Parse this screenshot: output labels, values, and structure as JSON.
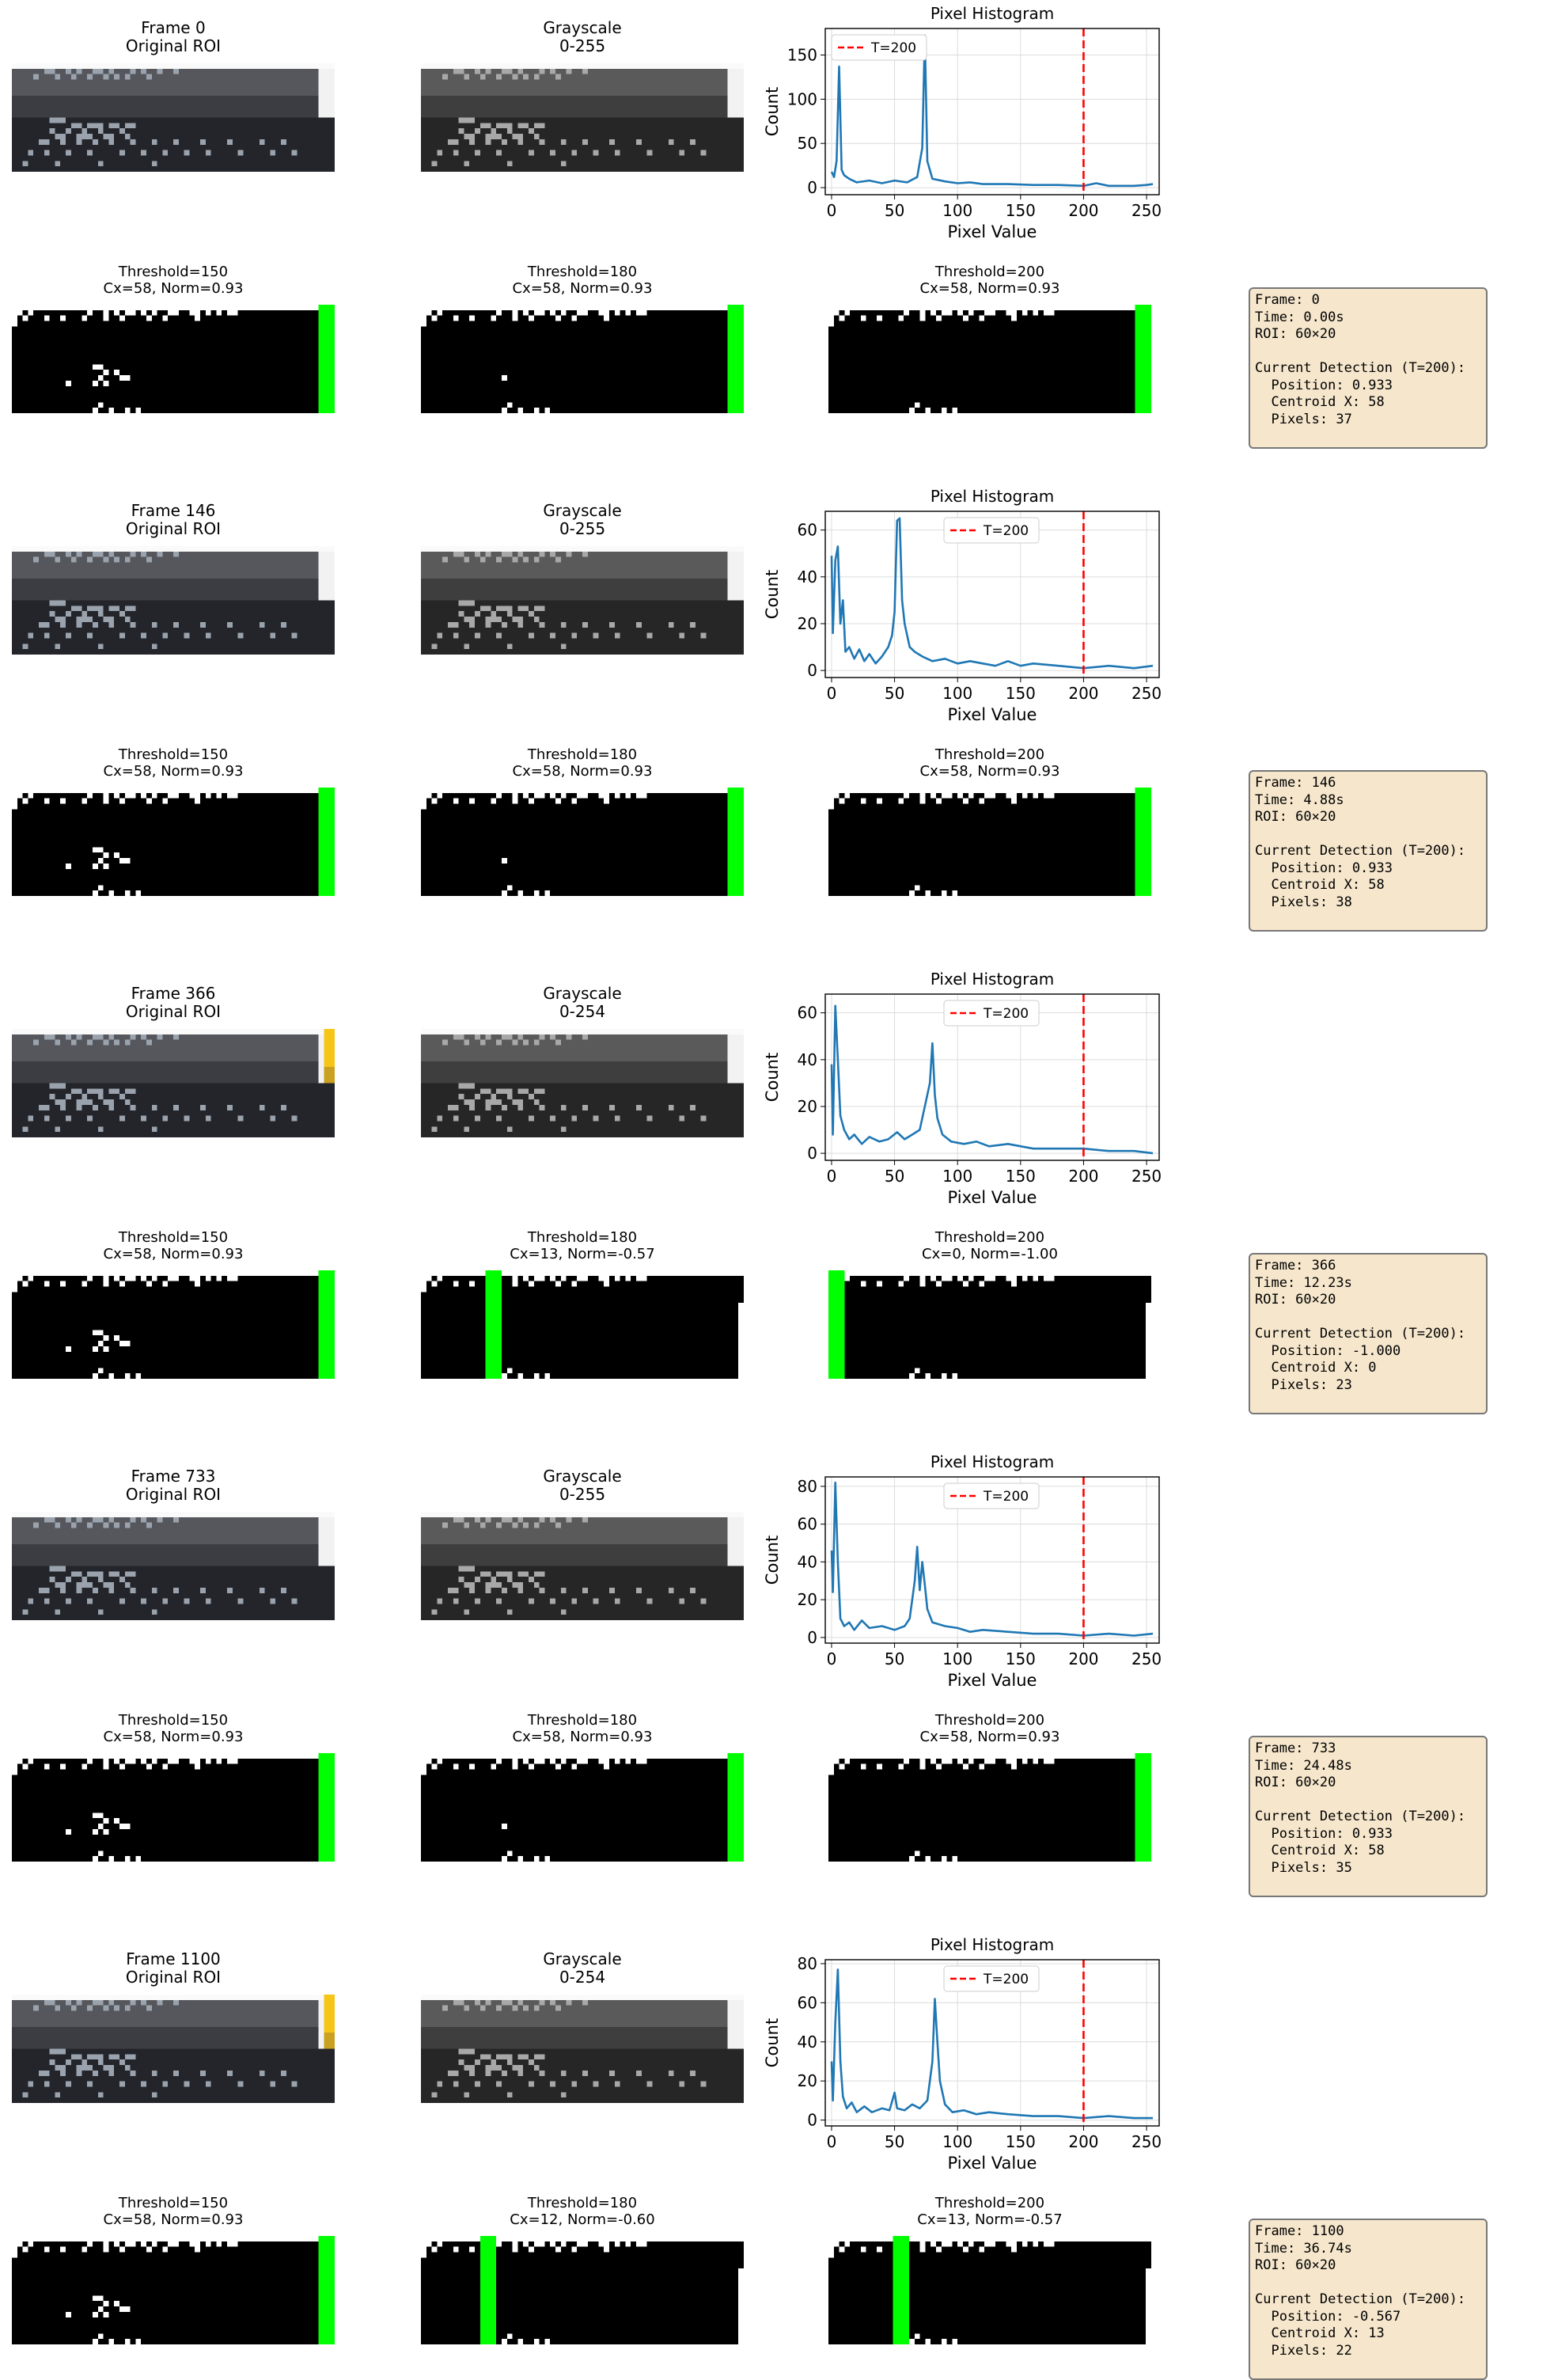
{
  "colors": {
    "line": "#1f77b4",
    "threshold": "#ff0000",
    "detection": "#00ff00",
    "info_bg": "#f5e6cc"
  },
  "chart_data": {
    "type": "line",
    "frames": [
      {
        "roi_title": "Frame 0\nOriginal ROI",
        "gray_title": "Grayscale\n0-255",
        "hist": {
          "title": "Pixel Histogram",
          "xlabel": "Pixel Value",
          "ylabel": "Count",
          "legend": "T=200",
          "legend_pos": "upper left",
          "threshold": 200,
          "xlim": [
            -5,
            260
          ],
          "ylim": [
            -8,
            180
          ],
          "xticks": [
            0,
            50,
            100,
            150,
            200,
            250
          ],
          "yticks": [
            0,
            50,
            100,
            150
          ],
          "points": [
            [
              0,
              18
            ],
            [
              2,
              12
            ],
            [
              4,
              30
            ],
            [
              6,
              137
            ],
            [
              8,
              20
            ],
            [
              10,
              14
            ],
            [
              14,
              10
            ],
            [
              20,
              6
            ],
            [
              30,
              8
            ],
            [
              40,
              5
            ],
            [
              50,
              8
            ],
            [
              60,
              6
            ],
            [
              68,
              12
            ],
            [
              72,
              45
            ],
            [
              74,
              172
            ],
            [
              76,
              30
            ],
            [
              80,
              10
            ],
            [
              90,
              7
            ],
            [
              100,
              5
            ],
            [
              110,
              6
            ],
            [
              120,
              4
            ],
            [
              140,
              4
            ],
            [
              160,
              3
            ],
            [
              180,
              3
            ],
            [
              200,
              2
            ],
            [
              210,
              5
            ],
            [
              220,
              2
            ],
            [
              240,
              2
            ],
            [
              250,
              3
            ],
            [
              255,
              4
            ]
          ]
        },
        "thresholds": [
          {
            "title": "Threshold=150\nCx=58, Norm=0.93",
            "cx": 58,
            "dots": true,
            "stripe_fill": 1
          },
          {
            "title": "Threshold=180\nCx=58, Norm=0.93",
            "cx": 58,
            "dots": "few",
            "stripe_fill": 1
          },
          {
            "title": "Threshold=200\nCx=58, Norm=0.93",
            "cx": 58,
            "dots": false,
            "stripe_fill": 1
          }
        ],
        "info": "Frame: 0\nTime: 0.00s\nROI: 60×20\n\nCurrent Detection (T=200):\n  Position: 0.933\n  Centroid X: 58\n  Pixels: 37"
      },
      {
        "roi_title": "Frame 146\nOriginal ROI",
        "gray_title": "Grayscale\n0-255",
        "hist": {
          "title": "Pixel Histogram",
          "xlabel": "Pixel Value",
          "ylabel": "Count",
          "legend": "T=200",
          "legend_pos": "upper center",
          "threshold": 200,
          "xlim": [
            -5,
            260
          ],
          "ylim": [
            -3,
            68
          ],
          "xticks": [
            0,
            50,
            100,
            150,
            200,
            250
          ],
          "yticks": [
            0,
            20,
            40,
            60
          ],
          "points": [
            [
              0,
              49
            ],
            [
              1,
              16
            ],
            [
              3,
              47
            ],
            [
              5,
              53
            ],
            [
              7,
              20
            ],
            [
              9,
              30
            ],
            [
              11,
              8
            ],
            [
              14,
              10
            ],
            [
              18,
              5
            ],
            [
              22,
              9
            ],
            [
              26,
              4
            ],
            [
              30,
              7
            ],
            [
              35,
              3
            ],
            [
              40,
              6
            ],
            [
              45,
              10
            ],
            [
              48,
              15
            ],
            [
              50,
              25
            ],
            [
              52,
              64
            ],
            [
              54,
              65
            ],
            [
              56,
              30
            ],
            [
              58,
              20
            ],
            [
              62,
              10
            ],
            [
              66,
              8
            ],
            [
              72,
              6
            ],
            [
              80,
              4
            ],
            [
              90,
              5
            ],
            [
              100,
              3
            ],
            [
              110,
              4
            ],
            [
              120,
              3
            ],
            [
              130,
              2
            ],
            [
              140,
              4
            ],
            [
              150,
              2
            ],
            [
              160,
              3
            ],
            [
              180,
              2
            ],
            [
              200,
              1
            ],
            [
              220,
              2
            ],
            [
              240,
              1
            ],
            [
              255,
              2
            ]
          ]
        },
        "thresholds": [
          {
            "title": "Threshold=150\nCx=58, Norm=0.93",
            "cx": 58,
            "dots": true,
            "stripe_fill": 1
          },
          {
            "title": "Threshold=180\nCx=58, Norm=0.93",
            "cx": 58,
            "dots": "few",
            "stripe_fill": 1
          },
          {
            "title": "Threshold=200\nCx=58, Norm=0.93",
            "cx": 58,
            "dots": false,
            "stripe_fill": 1
          }
        ],
        "info": "Frame: 146\nTime: 4.88s\nROI: 60×20\n\nCurrent Detection (T=200):\n  Position: 0.933\n  Centroid X: 58\n  Pixels: 38"
      },
      {
        "roi_title": "Frame 366\nOriginal ROI",
        "gray_title": "Grayscale\n0-254",
        "hist": {
          "title": "Pixel Histogram",
          "xlabel": "Pixel Value",
          "ylabel": "Count",
          "legend": "T=200",
          "legend_pos": "upper center",
          "threshold": 200,
          "xlim": [
            -5,
            260
          ],
          "ylim": [
            -3,
            68
          ],
          "xticks": [
            0,
            50,
            100,
            150,
            200,
            250
          ],
          "yticks": [
            0,
            20,
            40,
            60
          ],
          "points": [
            [
              0,
              38
            ],
            [
              1,
              8
            ],
            [
              3,
              63
            ],
            [
              5,
              40
            ],
            [
              7,
              16
            ],
            [
              10,
              10
            ],
            [
              14,
              6
            ],
            [
              18,
              8
            ],
            [
              24,
              4
            ],
            [
              30,
              7
            ],
            [
              38,
              5
            ],
            [
              45,
              6
            ],
            [
              52,
              9
            ],
            [
              58,
              6
            ],
            [
              64,
              8
            ],
            [
              70,
              10
            ],
            [
              74,
              20
            ],
            [
              78,
              30
            ],
            [
              80,
              47
            ],
            [
              82,
              25
            ],
            [
              84,
              15
            ],
            [
              88,
              8
            ],
            [
              95,
              5
            ],
            [
              105,
              4
            ],
            [
              115,
              5
            ],
            [
              125,
              3
            ],
            [
              140,
              4
            ],
            [
              160,
              2
            ],
            [
              180,
              2
            ],
            [
              200,
              2
            ],
            [
              220,
              1
            ],
            [
              240,
              1
            ],
            [
              255,
              0
            ]
          ]
        },
        "thresholds": [
          {
            "title": "Threshold=150\nCx=58, Norm=0.93",
            "cx": 58,
            "dots": true,
            "stripe_fill": 1
          },
          {
            "title": "Threshold=180\nCx=13, Norm=-0.57",
            "cx": 13,
            "dots": false,
            "stripe_fill": 1
          },
          {
            "title": "Threshold=200\nCx=0, Norm=-1.00",
            "cx": 0,
            "dots": false,
            "stripe_fill": 1
          }
        ],
        "info": "Frame: 366\nTime: 12.23s\nROI: 60×20\n\nCurrent Detection (T=200):\n  Position: -1.000\n  Centroid X: 0\n  Pixels: 23"
      },
      {
        "roi_title": "Frame 733\nOriginal ROI",
        "gray_title": "Grayscale\n0-255",
        "hist": {
          "title": "Pixel Histogram",
          "xlabel": "Pixel Value",
          "ylabel": "Count",
          "legend": "T=200",
          "legend_pos": "upper center",
          "threshold": 200,
          "xlim": [
            -5,
            260
          ],
          "ylim": [
            -3,
            85
          ],
          "xticks": [
            0,
            50,
            100,
            150,
            200,
            250
          ],
          "yticks": [
            0,
            20,
            40,
            60,
            80
          ],
          "points": [
            [
              0,
              46
            ],
            [
              1,
              24
            ],
            [
              3,
              82
            ],
            [
              5,
              40
            ],
            [
              7,
              10
            ],
            [
              10,
              6
            ],
            [
              14,
              8
            ],
            [
              18,
              4
            ],
            [
              24,
              9
            ],
            [
              30,
              5
            ],
            [
              40,
              6
            ],
            [
              50,
              4
            ],
            [
              58,
              6
            ],
            [
              62,
              10
            ],
            [
              66,
              30
            ],
            [
              68,
              48
            ],
            [
              70,
              25
            ],
            [
              72,
              40
            ],
            [
              74,
              28
            ],
            [
              76,
              15
            ],
            [
              80,
              8
            ],
            [
              90,
              6
            ],
            [
              100,
              5
            ],
            [
              110,
              3
            ],
            [
              120,
              4
            ],
            [
              140,
              3
            ],
            [
              160,
              2
            ],
            [
              180,
              2
            ],
            [
              200,
              1
            ],
            [
              220,
              2
            ],
            [
              240,
              1
            ],
            [
              255,
              2
            ]
          ]
        },
        "thresholds": [
          {
            "title": "Threshold=150\nCx=58, Norm=0.93",
            "cx": 58,
            "dots": true,
            "stripe_fill": 1
          },
          {
            "title": "Threshold=180\nCx=58, Norm=0.93",
            "cx": 58,
            "dots": "few",
            "stripe_fill": 1
          },
          {
            "title": "Threshold=200\nCx=58, Norm=0.93",
            "cx": 58,
            "dots": false,
            "stripe_fill": 1
          }
        ],
        "info": "Frame: 733\nTime: 24.48s\nROI: 60×20\n\nCurrent Detection (T=200):\n  Position: 0.933\n  Centroid X: 58\n  Pixels: 35"
      },
      {
        "roi_title": "Frame 1100\nOriginal ROI",
        "gray_title": "Grayscale\n0-254",
        "hist": {
          "title": "Pixel Histogram",
          "xlabel": "Pixel Value",
          "ylabel": "Count",
          "legend": "T=200",
          "legend_pos": "upper center",
          "threshold": 200,
          "xlim": [
            -5,
            260
          ],
          "ylim": [
            -3,
            82
          ],
          "xticks": [
            0,
            50,
            100,
            150,
            200,
            250
          ],
          "yticks": [
            0,
            20,
            40,
            60,
            80
          ],
          "points": [
            [
              0,
              30
            ],
            [
              1,
              10
            ],
            [
              3,
              50
            ],
            [
              5,
              77
            ],
            [
              7,
              30
            ],
            [
              9,
              12
            ],
            [
              12,
              6
            ],
            [
              16,
              9
            ],
            [
              20,
              4
            ],
            [
              26,
              7
            ],
            [
              32,
              4
            ],
            [
              40,
              6
            ],
            [
              46,
              5
            ],
            [
              50,
              14
            ],
            [
              52,
              6
            ],
            [
              58,
              5
            ],
            [
              64,
              8
            ],
            [
              70,
              6
            ],
            [
              76,
              10
            ],
            [
              80,
              30
            ],
            [
              82,
              62
            ],
            [
              84,
              40
            ],
            [
              86,
              20
            ],
            [
              90,
              8
            ],
            [
              96,
              4
            ],
            [
              105,
              5
            ],
            [
              115,
              3
            ],
            [
              125,
              4
            ],
            [
              140,
              3
            ],
            [
              160,
              2
            ],
            [
              180,
              2
            ],
            [
              200,
              1
            ],
            [
              220,
              2
            ],
            [
              240,
              1
            ],
            [
              255,
              1
            ]
          ]
        },
        "thresholds": [
          {
            "title": "Threshold=150\nCx=58, Norm=0.93",
            "cx": 58,
            "dots": true,
            "stripe_fill": 1
          },
          {
            "title": "Threshold=180\nCx=12, Norm=-0.60",
            "cx": 12,
            "dots": false,
            "stripe_fill": 1
          },
          {
            "title": "Threshold=200\nCx=13, Norm=-0.57",
            "cx": 13,
            "dots": false,
            "stripe_fill": 1
          }
        ],
        "info": "Frame: 1100\nTime: 36.74s\nROI: 60×20\n\nCurrent Detection (T=200):\n  Position: -0.567\n  Centroid X: 13\n  Pixels: 22"
      }
    ]
  }
}
